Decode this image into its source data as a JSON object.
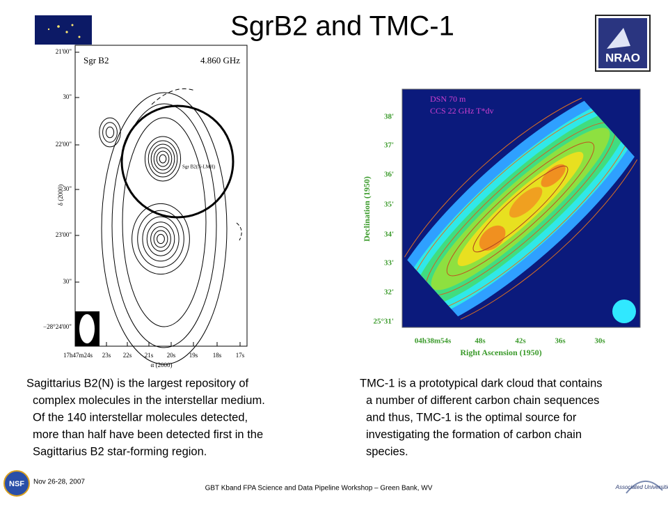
{
  "title": "SgrB2 and TMC-1",
  "left_figure": {
    "label": "Sgr B2",
    "frequency": "4.860 GHz",
    "source_label": "Sgr B2(N-LMH)",
    "y_axis_title": "δ (2000)",
    "x_axis_title": "α (2000)",
    "y_ticks": [
      "21'00\"",
      "30\"",
      "22'00\"",
      "30\"",
      "23'00\"",
      "30\"",
      "−28°24'00\""
    ],
    "x_ticks": [
      "17h47m24s",
      "23s",
      "22s",
      "21s",
      "20s",
      "19s",
      "18s",
      "17s"
    ]
  },
  "right_figure": {
    "label": "DSN 70 m",
    "subtitle": "CCS 22 GHz T*dv",
    "y_axis_title": "Declination (1950)",
    "x_axis_title": "Right Ascension (1950)",
    "y_ticks": [
      "38'",
      "37'",
      "36'",
      "35'",
      "34'",
      "33'",
      "32'",
      "25°31'"
    ],
    "x_ticks": [
      "04h38m54s",
      "48s",
      "42s",
      "36s",
      "30s"
    ]
  },
  "left_text": [
    "Sagittarius B2(N) is the largest repository of",
    "complex molecules in the interstellar medium.",
    "Of the 140 interstellar molecules detected,",
    "more than half have been detected first in the",
    "Sagittarius B2 star-forming region."
  ],
  "right_text": [
    "TMC-1 is a prototypical dark cloud that contains",
    "a number of different carbon chain sequences",
    "and thus, TMC-1 is the optimal source for",
    "investigating the formation of carbon chain",
    "species."
  ],
  "footer": {
    "date": "Nov 26-28, 2007",
    "workshop": "GBT Kband FPA Science and Data Pipeline Workshop – Green Bank, WV",
    "nsf_logo": "NSF",
    "nrao_logo": "NRAO",
    "aui_logo": "Associated Universities"
  }
}
